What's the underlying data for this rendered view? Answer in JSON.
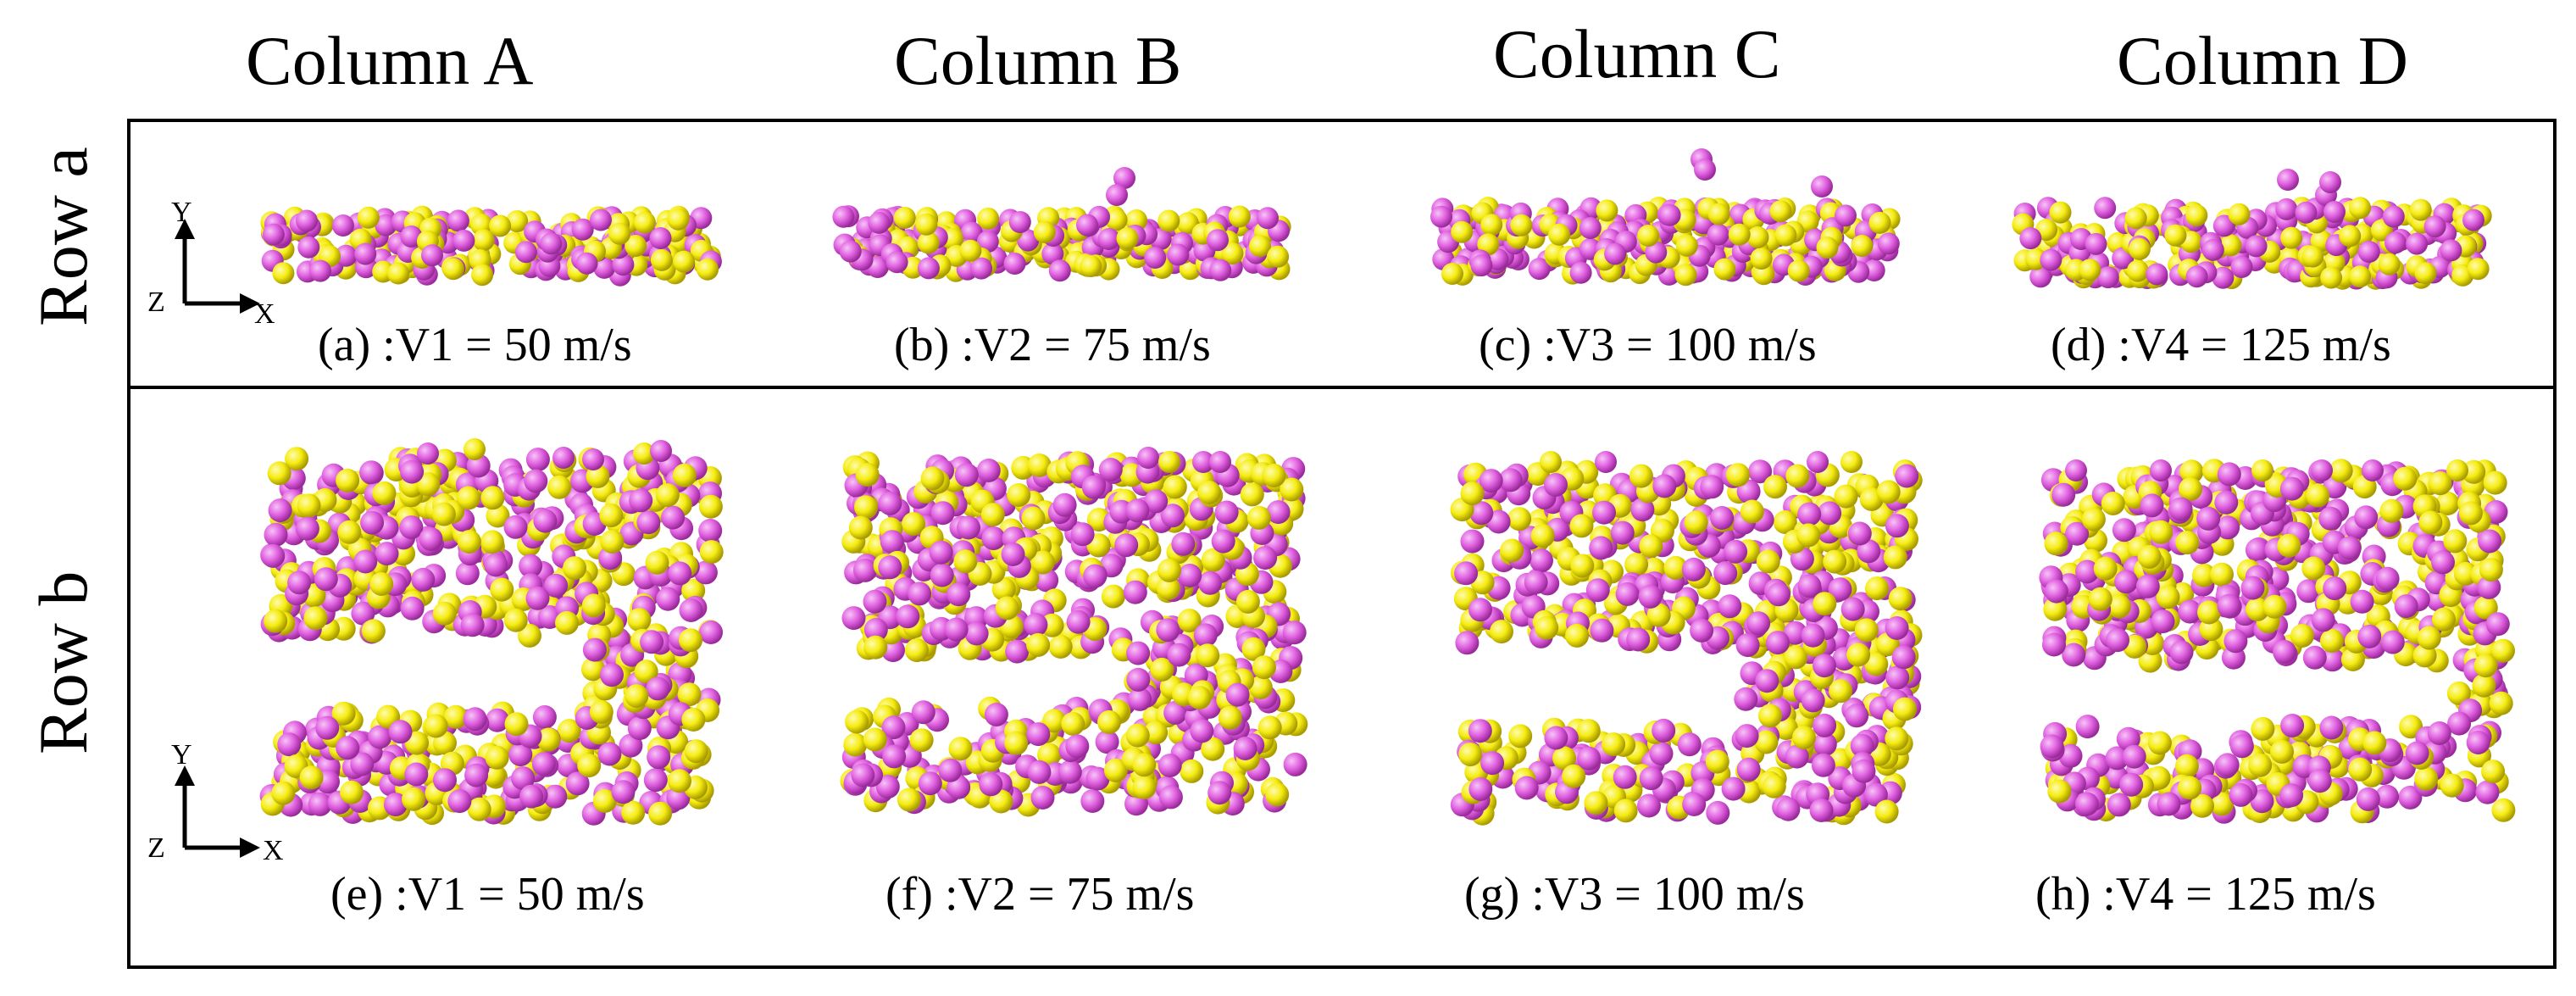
{
  "columns": [
    "Column A",
    "Column B",
    "Column C",
    "Column D"
  ],
  "rows": [
    "Row a",
    "Row b"
  ],
  "captions": [
    "(a) :V1 = 50 m/s",
    "(b) :V2 = 75 m/s",
    "(c) :V3 = 100 m/s",
    "(d) :V4 = 125 m/s",
    "(e) :V1 = 50 m/s",
    "(f) :V2 = 75 m/s",
    "(g) :V3 = 100 m/s",
    "(h) :V4 = 125 m/s"
  ],
  "axis_labels": {
    "y": "Y",
    "x": "X",
    "z": "Z"
  },
  "colors": {
    "atom_a": "#e060e0",
    "atom_b": "#f5ec10",
    "frame": "#000000"
  }
}
